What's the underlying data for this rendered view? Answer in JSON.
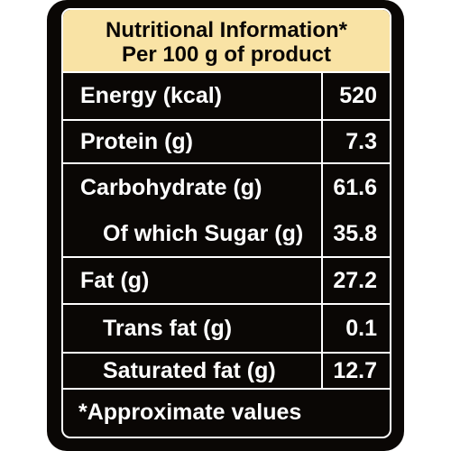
{
  "label": {
    "title_line1": "Nutritional Information*",
    "title_line2": "Per 100 g of product",
    "rows": [
      {
        "name": "Energy (kcal)",
        "value": "520"
      },
      {
        "name": "Protein (g)",
        "value": "7.3"
      },
      {
        "name": "Carbohydrate (g)",
        "value": "61.6"
      },
      {
        "name": "Of which Sugar (g)",
        "value": "35.8"
      },
      {
        "name": "Fat (g)",
        "value": "27.2"
      },
      {
        "name": "Trans fat (g)",
        "value": "0.1"
      },
      {
        "name": "Saturated fat (g)",
        "value": "12.7"
      }
    ],
    "footnote": "*Approximate values"
  },
  "colors": {
    "background": "#0a0705",
    "header": "#f9e3a5",
    "text": "#ffffff",
    "rule": "#ffffff"
  }
}
